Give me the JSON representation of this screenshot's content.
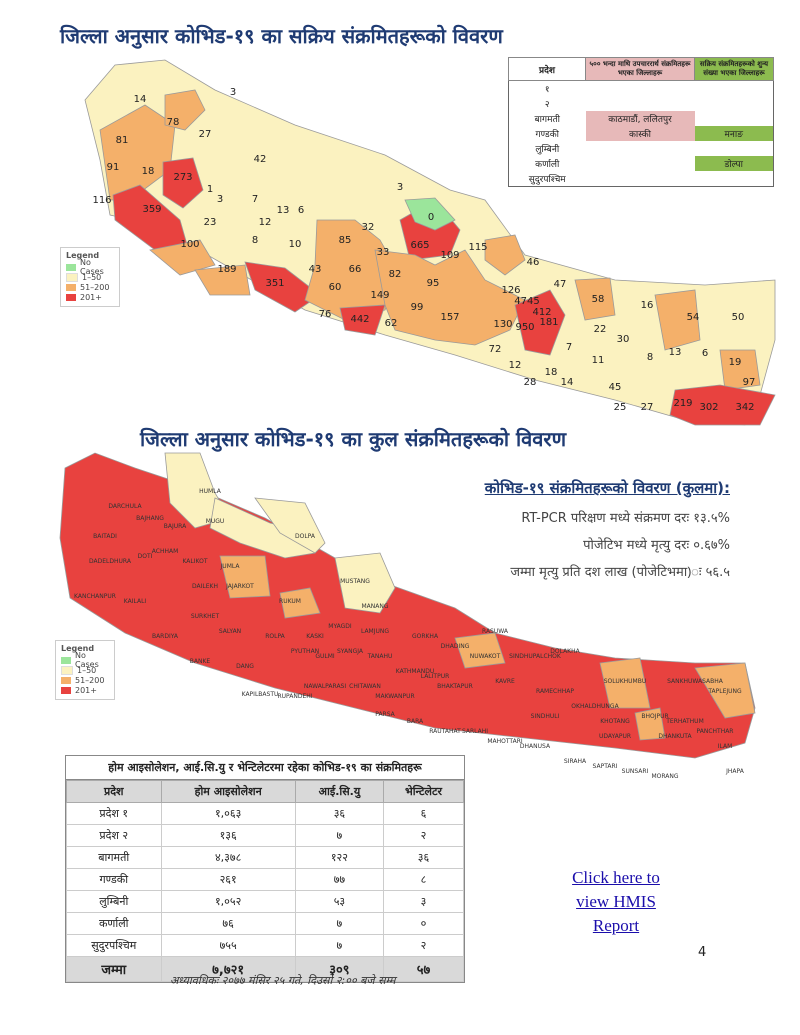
{
  "titles": {
    "active": "जिल्ला अनुसार कोभिड-१९ का सक्रिय संक्रमितहरूको विवरण",
    "total": "जिल्ला अनुसार कोभिड-१९ का कुल संक्रमितहरूको विवरण"
  },
  "legend": {
    "title": "Legend",
    "items": [
      {
        "label": "No Cases",
        "color": "#9be59b"
      },
      {
        "label": "1–50",
        "color": "#fbf2c0"
      },
      {
        "label": "51–200",
        "color": "#f4b06a"
      },
      {
        "label": "201+",
        "color": "#e8423f"
      }
    ]
  },
  "active_table": {
    "headers": [
      "प्रदेश",
      "५०० भन्दा माथि उपचाररार्थ संक्रमितहरू भएका जिल्लाहरू",
      "सक्रिय संक्रमितहरूको शुन्य संख्या भएका जिल्लाहरू"
    ],
    "rows": [
      {
        "p": "१",
        "a": "",
        "b": ""
      },
      {
        "p": "२",
        "a": "",
        "b": ""
      },
      {
        "p": "बागमती",
        "a": "काठमाडौं, ललितपुर",
        "b": ""
      },
      {
        "p": "गण्डकी",
        "a": "कास्की",
        "b": "मनाङ"
      },
      {
        "p": "लुम्बिनी",
        "a": "",
        "b": ""
      },
      {
        "p": "कर्णाली",
        "a": "",
        "b": "डोल्पा"
      },
      {
        "p": "सुदुरपश्चिम",
        "a": "",
        "b": ""
      }
    ]
  },
  "active_map_labels": [
    "14",
    "3",
    "78",
    "27",
    "81",
    "42",
    "91",
    "18",
    "273",
    "1",
    "3",
    "116",
    "359",
    "3",
    "7",
    "13",
    "6",
    "23",
    "12",
    "32",
    "0",
    "100",
    "8",
    "10",
    "85",
    "665",
    "115",
    "33",
    "109",
    "189",
    "66",
    "82",
    "46",
    "43",
    "351",
    "60",
    "149",
    "95",
    "126",
    "47",
    "58",
    "4745",
    "76",
    "442",
    "62",
    "99",
    "157",
    "130",
    "412",
    "181",
    "16",
    "54",
    "50",
    "950",
    "22",
    "7",
    "30",
    "8",
    "13",
    "6",
    "19",
    "72",
    "12",
    "28",
    "18",
    "14",
    "11",
    "45",
    "25",
    "97",
    "27",
    "219",
    "302",
    "342"
  ],
  "summary": {
    "title": "कोभिड-१९ संक्रमितहरूको विवरण (कुलमा):",
    "lines": [
      "RT-PCR परिक्षण मध्ये संक्रमण दरः १३.५%",
      "पोजेटिभ मध्ये मृत्यु दरः ०.६७%",
      "जम्मा मृत्यु प्रति दश लाख (पोजेटिभमा)ः ५६.५"
    ]
  },
  "total_map_labels": [
    "HUMLA",
    "MUGU",
    "BAJHANG",
    "BAJURA",
    "DARCHULA",
    "BAITADI",
    "DADELDHURA",
    "DOTI",
    "ACHHAM",
    "KALIKOT",
    "JUMLA",
    "DOLPA",
    "MUSTANG",
    "KAILALI",
    "KANCHANPUR",
    "DAILEKH",
    "JAJARKOT",
    "SURKHET",
    "RUKUM",
    "MANANG",
    "BARDIYA",
    "SALYAN",
    "MYAGDI",
    "KASKI",
    "LAMJUNG",
    "GORKHA",
    "BANKE",
    "DANG",
    "ROLPA",
    "PYUTHAN",
    "GULMI",
    "SYANGJA",
    "TANAHU",
    "DHADING",
    "NUWAKOT",
    "RASUWA",
    "SINDHUPALCHOK",
    "DOLAKHA",
    "SOLUKHUMBU",
    "SANKHUWASABHA",
    "TAPLEJUNG",
    "KAPILBASTU",
    "RUPANDEHI",
    "NAWALPARASI",
    "CHITAWAN",
    "MAKWANPUR",
    "KATHMANDU",
    "LALITPUR",
    "BHAKTAPUR",
    "KAVRE",
    "RAMECHHAP",
    "OKHALDHUNGA",
    "BHOJPUR",
    "TERHATHUM",
    "PANCHTHAR",
    "ILAM",
    "JHAPA",
    "MORANG",
    "SUNSARI",
    "SAPTARI",
    "SIRAHA",
    "DHANUSA",
    "MAHOTTARI",
    "SARLAHI",
    "RAUTAHAT",
    "BARA",
    "PARSA",
    "UDAYAPUR",
    "KHOTANG",
    "DHANKUTA",
    "SINDHULI"
  ],
  "hospital_table": {
    "title": "होम आइसोलेशन, आई.सि.यु र भेन्टिलेटरमा रहेका कोभिड-१९ का संक्रमितहरू",
    "headers": [
      "प्रदेश",
      "होम आइसोलेशन",
      "आई.सि.यु",
      "भेन्टिलेटर"
    ],
    "rows": [
      [
        "प्रदेश १",
        "१,०६३",
        "३६",
        "६"
      ],
      [
        "प्रदेश २",
        "१३६",
        "७",
        "२"
      ],
      [
        "बागमती",
        "४,३७८",
        "१२२",
        "३६"
      ],
      [
        "गण्डकी",
        "२६१",
        "७७",
        "८"
      ],
      [
        "लुम्बिनी",
        "१,०५२",
        "५३",
        "३"
      ],
      [
        "कर्णाली",
        "७६",
        "७",
        "०"
      ],
      [
        "सुदुरपश्चिम",
        "७५५",
        "७",
        "२"
      ]
    ],
    "total": [
      "जम्मा",
      "७,७२१",
      "३०९",
      "५७"
    ]
  },
  "link": {
    "text": "Click here to view HMIS Report"
  },
  "page_number": "4",
  "footnote": "अध्यावधिकः २०७७ मंसिर २५ गते, दिउसो २:०० बजे सम्म"
}
